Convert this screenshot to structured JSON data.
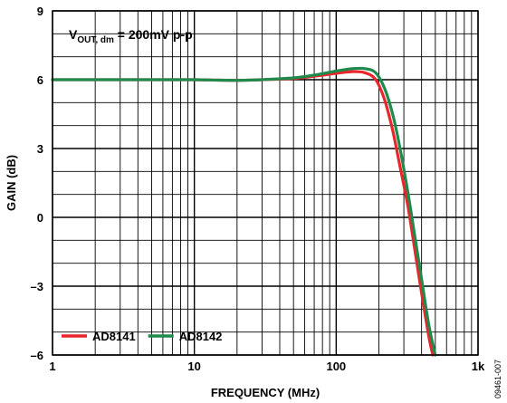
{
  "chart_data": {
    "type": "line",
    "title": "",
    "xlabel": "FREQUENCY (MHz)",
    "ylabel": "GAIN (dB)",
    "x_scale": "log",
    "xlim": [
      1,
      1000
    ],
    "ylim": [
      -6,
      9
    ],
    "grid": true,
    "x_ticks": [
      1,
      10,
      100,
      1000
    ],
    "x_tick_labels": [
      "1",
      "10",
      "100",
      "1k"
    ],
    "y_ticks": [
      -6,
      -3,
      0,
      3,
      6,
      9
    ],
    "y_tick_labels": [
      "–6",
      "–3",
      "0",
      "3",
      "6",
      "9"
    ],
    "annotation": {
      "main": "V",
      "sub": "OUT, dm",
      "rest": " = 200mV p-p"
    },
    "figure_id": "09461-007",
    "legend_position": "bottom-left",
    "series": [
      {
        "name": "AD8141",
        "color": "#e8262b",
        "x": [
          1,
          2,
          5,
          10,
          15,
          20,
          30,
          50,
          70,
          100,
          130,
          160,
          190,
          220,
          250,
          280,
          320,
          360,
          400,
          450,
          480
        ],
        "y": [
          6.0,
          6.0,
          6.0,
          6.0,
          5.98,
          5.97,
          6.0,
          6.05,
          6.15,
          6.28,
          6.35,
          6.3,
          6.0,
          5.1,
          3.8,
          2.3,
          0.5,
          -1.5,
          -3.3,
          -5.2,
          -6.0
        ]
      },
      {
        "name": "AD8142",
        "color": "#1f8a4c",
        "x": [
          1,
          2,
          5,
          10,
          15,
          20,
          30,
          50,
          70,
          100,
          130,
          160,
          190,
          220,
          250,
          280,
          320,
          360,
          400,
          450,
          500
        ],
        "y": [
          6.0,
          6.0,
          6.0,
          6.0,
          5.98,
          5.97,
          6.0,
          6.08,
          6.2,
          6.38,
          6.48,
          6.48,
          6.3,
          5.6,
          4.5,
          3.1,
          1.1,
          -0.9,
          -2.7,
          -4.7,
          -6.0
        ]
      }
    ]
  }
}
